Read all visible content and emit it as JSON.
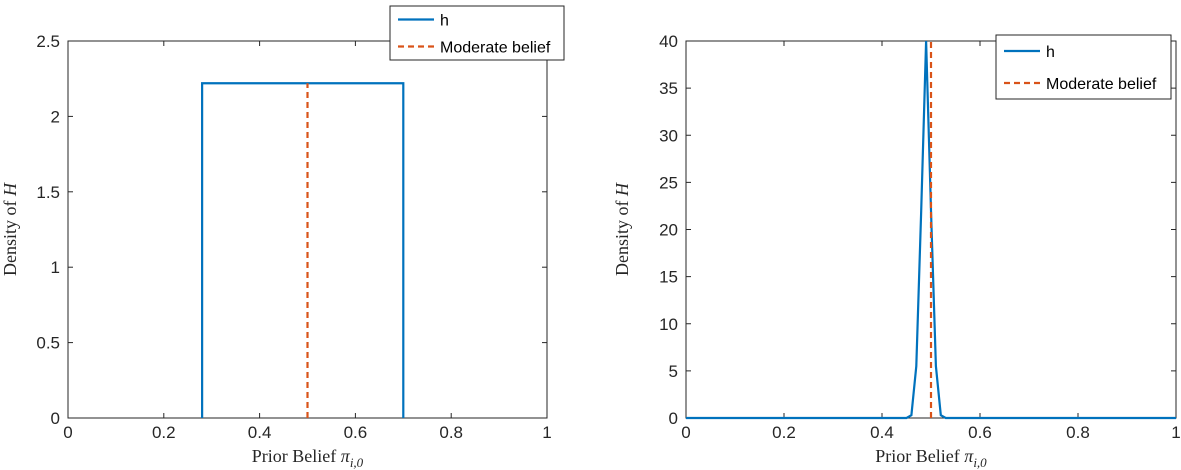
{
  "chart_data": [
    {
      "type": "line",
      "xlabel": "Prior Belief",
      "xlabel_math": "π",
      "xlabel_sub": "i,0",
      "ylabel": "Density of",
      "ylabel_math": "H",
      "xlim": [
        0,
        1
      ],
      "ylim": [
        0,
        2.5
      ],
      "xticks": [
        0,
        0.2,
        0.4,
        0.6,
        0.8,
        1
      ],
      "xtick_labels": [
        "0",
        "0.2",
        "0.4",
        "0.6",
        "0.8",
        "1"
      ],
      "yticks": [
        0,
        0.5,
        1,
        1.5,
        2,
        2.5
      ],
      "ytick_labels": [
        "0",
        "0.5",
        "1",
        "1.5",
        "2",
        "2.5"
      ],
      "grid": false,
      "legend_position": "top-right",
      "series": [
        {
          "name": "h",
          "color": "#0072BD",
          "style": "solid",
          "x": [
            0.28,
            0.28,
            0.7,
            0.7
          ],
          "y": [
            0,
            2.22,
            2.22,
            0
          ]
        },
        {
          "name": "Moderate belief",
          "color": "#D95319",
          "style": "dashed",
          "x": [
            0.5,
            0.5
          ],
          "y": [
            0,
            2.22
          ]
        }
      ]
    },
    {
      "type": "line",
      "xlabel": "Prior Belief",
      "xlabel_math": "π",
      "xlabel_sub": "i,0",
      "ylabel": "Density of",
      "ylabel_math": "H",
      "xlim": [
        0,
        1
      ],
      "ylim": [
        0,
        40
      ],
      "xticks": [
        0,
        0.2,
        0.4,
        0.6,
        0.8,
        1
      ],
      "xtick_labels": [
        "0",
        "0.2",
        "0.4",
        "0.6",
        "0.8",
        "1"
      ],
      "yticks": [
        0,
        5,
        10,
        15,
        20,
        25,
        30,
        35,
        40
      ],
      "ytick_labels": [
        "0",
        "5",
        "10",
        "15",
        "20",
        "25",
        "30",
        "35",
        "40"
      ],
      "grid": false,
      "legend_position": "top-right",
      "series": [
        {
          "name": "h",
          "color": "#0072BD",
          "style": "solid",
          "x": [
            0,
            0.45,
            0.46,
            0.47,
            0.48,
            0.49,
            0.5,
            0.51,
            0.52,
            0.53,
            0.54,
            1
          ],
          "y": [
            0,
            0,
            0.3,
            5.5,
            22,
            40,
            22,
            5.5,
            0.3,
            0,
            0,
            0
          ]
        },
        {
          "name": "Moderate belief",
          "color": "#D95319",
          "style": "dashed",
          "x": [
            0.5,
            0.5
          ],
          "y": [
            0,
            40
          ]
        }
      ]
    }
  ]
}
